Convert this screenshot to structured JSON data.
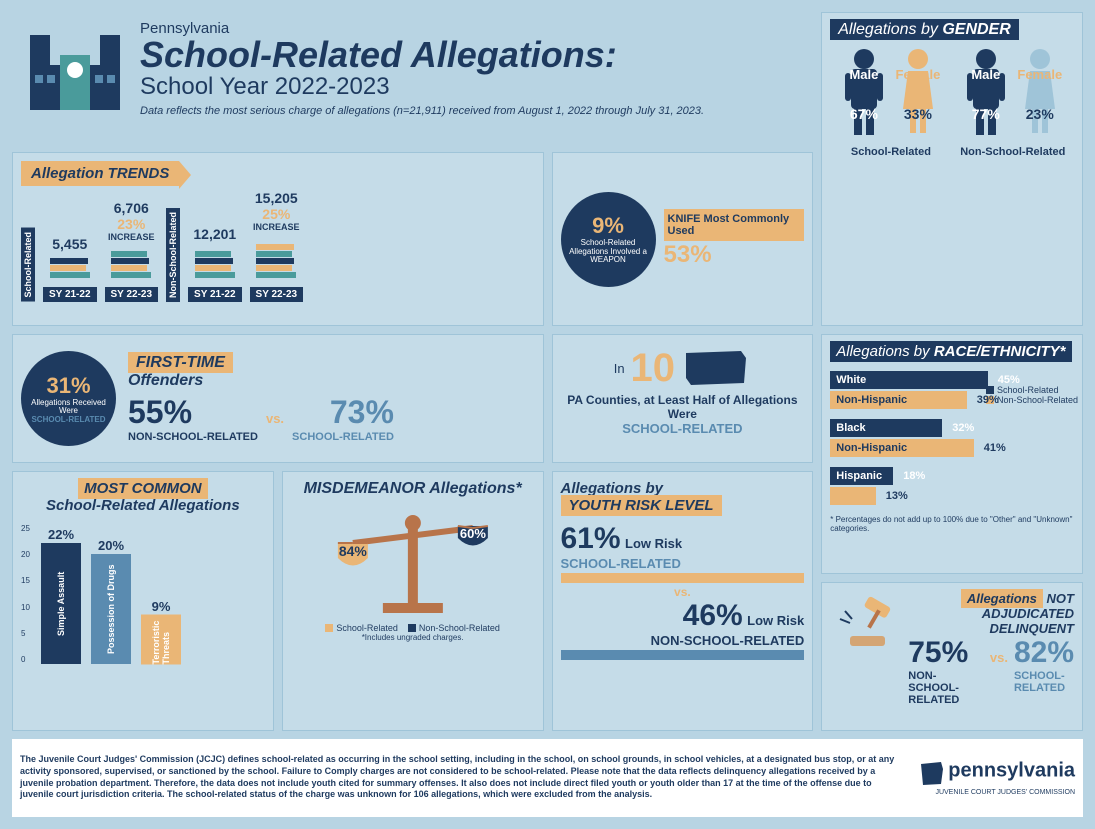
{
  "header": {
    "state": "Pennsylvania",
    "title": "School-Related Allegations:",
    "subtitle": "School Year 2022-2023",
    "note": "Data reflects the most serious charge of allegations (n=21,911) received from August 1, 2022 through July 31, 2023."
  },
  "colors": {
    "navy": "#1e3a5f",
    "orange": "#eab676",
    "lightblue": "#5a8bb0",
    "bg": "#b8d4e3",
    "card": "#c5dce8"
  },
  "gender": {
    "title_prefix": "Allegations by",
    "title_bold": "GENDER",
    "school": {
      "male": "67%",
      "female": "33%",
      "label": "School-Related"
    },
    "nonschool": {
      "male": "77%",
      "female": "23%",
      "label": "Non-School-Related"
    },
    "male_label": "Male",
    "female_label": "Female"
  },
  "trends": {
    "title": "Allegation TRENDS",
    "school_label": "School-Related",
    "nonschool_label": "Non-School-Related",
    "sy2122": "SY 21-22",
    "sy2223": "SY 22-23",
    "increase_label": "INCREASE",
    "school": {
      "v1": "5,455",
      "v2": "6,706",
      "pct": "23%"
    },
    "nonschool": {
      "v1": "12,201",
      "v2": "15,205",
      "pct": "25%"
    }
  },
  "weapon": {
    "pct": "9%",
    "text": "School-Related Allegations Involved a WEAPON",
    "knife_label": "KNIFE Most Commonly Used",
    "knife_pct": "53%"
  },
  "received": {
    "pct": "31%",
    "text": "Allegations Received Were",
    "label": "SCHOOL-RELATED"
  },
  "first_time": {
    "title_top": "FIRST-TIME",
    "title_bottom": "Offenders",
    "nsr_pct": "55%",
    "sr_pct": "73%",
    "vs": "vs.",
    "nsr_label": "NON-SCHOOL-RELATED",
    "sr_label": "SCHOOL-RELATED"
  },
  "counties": {
    "in": "In",
    "num": "10",
    "text": "PA Counties, at Least Half of Allegations Were",
    "label": "SCHOOL-RELATED"
  },
  "race": {
    "title_prefix": "Allegations by",
    "title_bold": "RACE/ETHNICITY*",
    "legend_sr": "School-Related",
    "legend_nsr": "Non-School-Related",
    "groups": [
      {
        "label": "White Non-Hispanic",
        "sr": 45,
        "nsr": 39
      },
      {
        "label": "Black Non-Hispanic",
        "sr": 32,
        "nsr": 41
      },
      {
        "label": "Hispanic",
        "sr": 18,
        "nsr": 13
      }
    ],
    "note": "* Percentages do not add up to 100% due to \"Other\" and \"Unknown\" categories."
  },
  "common": {
    "title_top": "MOST COMMON",
    "title_bottom": "School-Related Allegations",
    "axis": [
      "25",
      "20",
      "15",
      "10",
      "5",
      "0"
    ],
    "bars": [
      {
        "label": "Simple Assault",
        "pct": "22%",
        "height": 22,
        "color": "#1e3a5f"
      },
      {
        "label": "Possession of Drugs",
        "pct": "20%",
        "height": 20,
        "color": "#5a8bb0"
      },
      {
        "label": "Terroristic Threats",
        "pct": "9%",
        "height": 9,
        "color": "#eab676"
      }
    ]
  },
  "misdemeanor": {
    "title": "MISDEMEANOR Allegations*",
    "sr_pct": "84%",
    "nsr_pct": "60%",
    "legend_sr": "School-Related",
    "legend_nsr": "Non-School-Related",
    "note": "*Includes ungraded charges."
  },
  "risk": {
    "title_top": "Allegations by",
    "title_bottom": "YOUTH RISK LEVEL",
    "sr_pct": "61%",
    "sr_label": "Low Risk",
    "sr_sub": "SCHOOL-RELATED",
    "vs": "vs.",
    "nsr_pct": "46%",
    "nsr_label": "Low Risk",
    "nsr_sub": "NON-SCHOOL-RELATED"
  },
  "adjudicated": {
    "title_top": "Allegations",
    "title_bold": "NOT ADJUDICATED DELINQUENT",
    "nsr_pct": "75%",
    "sr_pct": "82%",
    "vs": "vs.",
    "nsr_label": "NON-SCHOOL-RELATED",
    "sr_label": "SCHOOL-RELATED"
  },
  "footer": {
    "text": "The Juvenile Court Judges' Commission (JCJC) defines school-related as occurring in the school setting, including in the school, on school grounds, in school vehicles, at a designated bus stop, or at any activity sponsored, supervised, or sanctioned by the school. Failure to Comply charges are not considered to be school-related. Please note that the data reflects delinquency allegations received by a juvenile probation department. Therefore, the data does not include youth cited for summary offenses. It also does not include direct filed youth or youth older than 17 at the time of the offense due to juvenile court jurisdiction criteria. The school-related status of the charge was unknown for 106 allegations, which were excluded from the analysis.",
    "logo": "pennsylvania",
    "logo_sub": "JUVENILE COURT JUDGES' COMMISSION"
  }
}
